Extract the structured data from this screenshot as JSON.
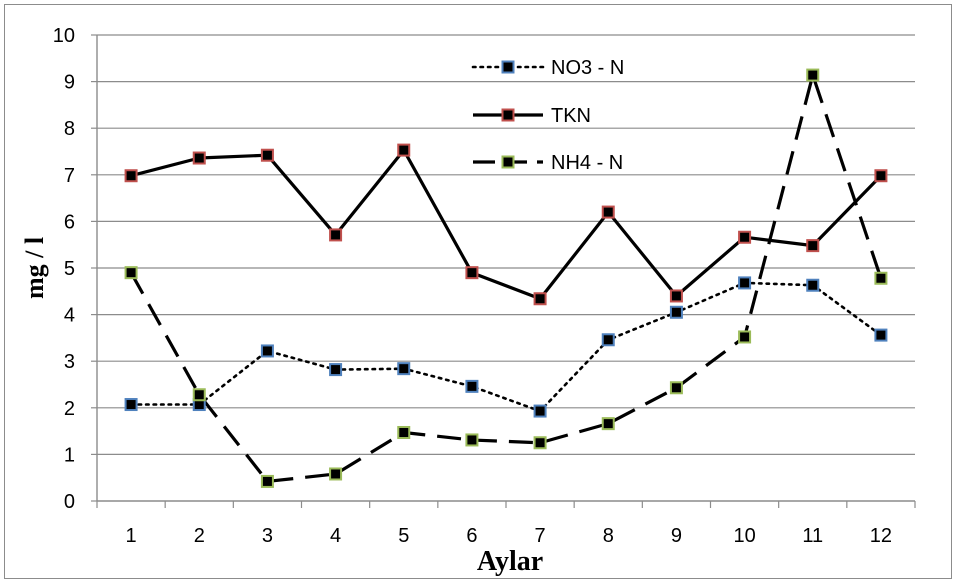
{
  "chart_data": {
    "type": "line",
    "xlabel": "Aylar",
    "ylabel": "mg / l",
    "categories": [
      "1",
      "2",
      "3",
      "4",
      "5",
      "6",
      "7",
      "8",
      "9",
      "10",
      "11",
      "12"
    ],
    "ylim": [
      0,
      10
    ],
    "yticks": [
      0,
      1,
      2,
      3,
      4,
      5,
      6,
      7,
      8,
      9,
      10
    ],
    "grid": true,
    "legend_position": "top-center",
    "series": [
      {
        "name": "NO3 - N",
        "line_style": "dotted",
        "marker_edge_color": "#4f81bd",
        "values": [
          2.07,
          2.07,
          3.22,
          2.82,
          2.84,
          2.46,
          1.93,
          3.46,
          4.05,
          4.68,
          4.63,
          3.56
        ]
      },
      {
        "name": "TKN",
        "line_style": "solid",
        "marker_edge_color": "#c0504d",
        "values": [
          6.98,
          7.36,
          7.42,
          5.71,
          7.53,
          4.9,
          4.34,
          6.2,
          4.4,
          5.66,
          5.48,
          6.98
        ]
      },
      {
        "name": "NH4 - N",
        "line_style": "dashed",
        "marker_edge_color": "#9bbb59",
        "values": [
          4.9,
          2.28,
          0.42,
          0.58,
          1.47,
          1.31,
          1.25,
          1.66,
          2.43,
          3.52,
          9.14,
          4.78
        ]
      }
    ]
  }
}
